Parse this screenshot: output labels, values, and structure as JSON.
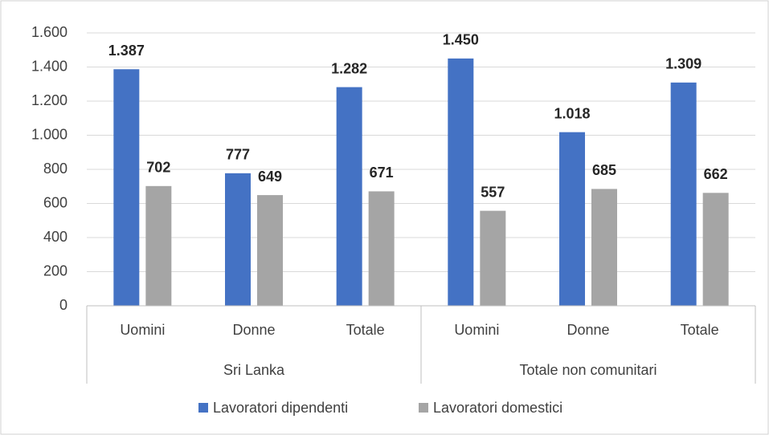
{
  "chart_data": {
    "type": "bar",
    "groups": [
      {
        "label": "Sri Lanka",
        "categories": [
          "Uomini",
          "Donne",
          "Totale"
        ]
      },
      {
        "label": "Totale non comunitari",
        "categories": [
          "Uomini",
          "Donne",
          "Totale"
        ]
      }
    ],
    "series": [
      {
        "name": "Lavoratori dipendenti",
        "color": "#4472c4",
        "values": [
          1387,
          777,
          1282,
          1450,
          1018,
          1309
        ],
        "value_labels": [
          "1.387",
          "777",
          "1.282",
          "1.450",
          "1.018",
          "1.309"
        ]
      },
      {
        "name": "Lavoratori domestici",
        "color": "#a5a5a5",
        "values": [
          702,
          649,
          671,
          557,
          685,
          662
        ],
        "value_labels": [
          "702",
          "649",
          "671",
          "557",
          "685",
          "662"
        ]
      }
    ],
    "ylim": [
      0,
      1600
    ],
    "yticks": [
      0,
      200,
      400,
      600,
      800,
      {
        "value": 1000,
        "label": "1.000"
      },
      {
        "value": 1200,
        "label": "1.200"
      },
      {
        "value": 1400,
        "label": "1.400"
      },
      {
        "value": 1600,
        "label": "1.600"
      }
    ],
    "grid": true,
    "legend": "bottom"
  }
}
